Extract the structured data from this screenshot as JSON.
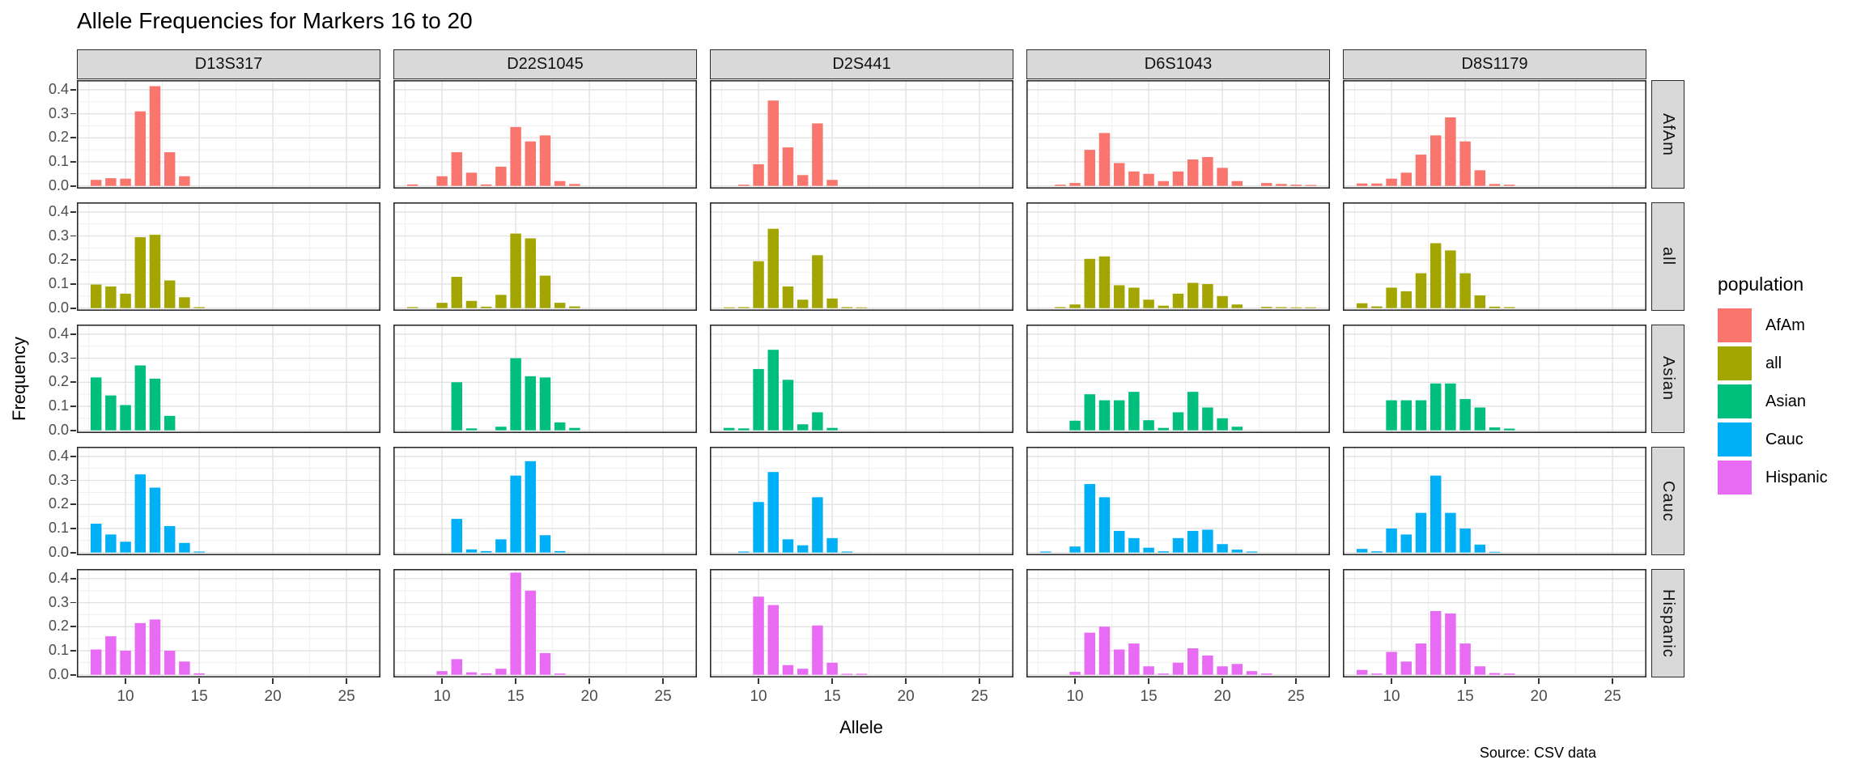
{
  "chart_data": {
    "type": "bar",
    "title": "Allele Frequencies for Markers 16 to 20",
    "xlabel": "Allele",
    "ylabel": "Frequency",
    "caption": "Source: CSV data",
    "x_ticks": [
      10,
      15,
      20,
      25
    ],
    "x_domain": [
      6.7,
      27.3
    ],
    "y_ticks": [
      "0.0",
      "0.1",
      "0.2",
      "0.3",
      "0.4"
    ],
    "y_tick_values": [
      0.0,
      0.1,
      0.2,
      0.3,
      0.4
    ],
    "y_minor_values": [
      0.05,
      0.15,
      0.25,
      0.35
    ],
    "x_minor_values": [
      7.5,
      12.5,
      17.5,
      22.5
    ],
    "ylim": [
      0,
      0.44
    ],
    "grid": "on",
    "legend_position": "right",
    "facets": {
      "columns": [
        "D13S317",
        "D22S1045",
        "D2S441",
        "D6S1043",
        "D8S1179"
      ],
      "rows": [
        "AfAm",
        "all",
        "Asian",
        "Cauc",
        "Hispanic"
      ]
    },
    "legend": {
      "title": "population",
      "entries": [
        {
          "label": "AfAm",
          "color": "#F8766D"
        },
        {
          "label": "all",
          "color": "#A3A500"
        },
        {
          "label": "Asian",
          "color": "#00BF7D"
        },
        {
          "label": "Cauc",
          "color": "#00B0F6"
        },
        {
          "label": "Hispanic",
          "color": "#E76BF3"
        }
      ]
    },
    "panels": [
      {
        "marker": "D13S317",
        "population": "AfAm",
        "alleles": [
          8,
          9,
          10,
          11,
          12,
          13,
          14
        ],
        "freqs": [
          0.025,
          0.032,
          0.03,
          0.31,
          0.415,
          0.14,
          0.04
        ]
      },
      {
        "marker": "D13S317",
        "population": "all",
        "alleles": [
          8,
          9,
          10,
          11,
          12,
          13,
          14,
          15
        ],
        "freqs": [
          0.098,
          0.09,
          0.06,
          0.295,
          0.305,
          0.115,
          0.045,
          0.004
        ]
      },
      {
        "marker": "D13S317",
        "population": "Asian",
        "alleles": [
          8,
          9,
          10,
          11,
          12,
          13
        ],
        "freqs": [
          0.22,
          0.145,
          0.105,
          0.27,
          0.215,
          0.06
        ]
      },
      {
        "marker": "D13S317",
        "population": "Cauc",
        "alleles": [
          8,
          9,
          10,
          11,
          12,
          13,
          14,
          15
        ],
        "freqs": [
          0.12,
          0.075,
          0.045,
          0.325,
          0.27,
          0.11,
          0.04,
          0.004
        ]
      },
      {
        "marker": "D13S317",
        "population": "Hispanic",
        "alleles": [
          8,
          9,
          10,
          11,
          12,
          13,
          14,
          15
        ],
        "freqs": [
          0.105,
          0.16,
          0.1,
          0.215,
          0.23,
          0.1,
          0.055,
          0.006
        ]
      },
      {
        "marker": "D22S1045",
        "population": "AfAm",
        "alleles": [
          8,
          10,
          11,
          12,
          13,
          14,
          15,
          16,
          17,
          18,
          19
        ],
        "freqs": [
          0.006,
          0.04,
          0.14,
          0.055,
          0.006,
          0.08,
          0.245,
          0.185,
          0.21,
          0.02,
          0.008
        ]
      },
      {
        "marker": "D22S1045",
        "population": "all",
        "alleles": [
          8,
          10,
          11,
          12,
          13,
          14,
          15,
          16,
          17,
          18,
          19
        ],
        "freqs": [
          0.004,
          0.022,
          0.13,
          0.03,
          0.006,
          0.055,
          0.31,
          0.29,
          0.135,
          0.022,
          0.007
        ]
      },
      {
        "marker": "D22S1045",
        "population": "Asian",
        "alleles": [
          11,
          12,
          14,
          15,
          16,
          17,
          18,
          19
        ],
        "freqs": [
          0.2,
          0.008,
          0.015,
          0.3,
          0.225,
          0.22,
          0.033,
          0.01
        ]
      },
      {
        "marker": "D22S1045",
        "population": "Cauc",
        "alleles": [
          11,
          12,
          13,
          14,
          15,
          16,
          17,
          18
        ],
        "freqs": [
          0.14,
          0.013,
          0.006,
          0.055,
          0.32,
          0.38,
          0.072,
          0.006
        ]
      },
      {
        "marker": "D22S1045",
        "population": "Hispanic",
        "alleles": [
          10,
          11,
          12,
          13,
          14,
          15,
          16,
          17,
          18
        ],
        "freqs": [
          0.015,
          0.065,
          0.01,
          0.006,
          0.025,
          0.425,
          0.35,
          0.09,
          0.005
        ]
      },
      {
        "marker": "D2S441",
        "population": "AfAm",
        "alleles": [
          9,
          10,
          11,
          12,
          13,
          14,
          15
        ],
        "freqs": [
          0.005,
          0.09,
          0.355,
          0.16,
          0.045,
          0.26,
          0.025
        ]
      },
      {
        "marker": "D2S441",
        "population": "all",
        "alleles": [
          8,
          9,
          10,
          11,
          12,
          13,
          14,
          15,
          16,
          17
        ],
        "freqs": [
          0.003,
          0.004,
          0.195,
          0.33,
          0.09,
          0.035,
          0.22,
          0.04,
          0.004,
          0.003
        ]
      },
      {
        "marker": "D2S441",
        "population": "Asian",
        "alleles": [
          8,
          9,
          10,
          11,
          12,
          13,
          14,
          15
        ],
        "freqs": [
          0.01,
          0.008,
          0.255,
          0.335,
          0.21,
          0.025,
          0.075,
          0.01
        ]
      },
      {
        "marker": "D2S441",
        "population": "Cauc",
        "alleles": [
          9,
          10,
          11,
          12,
          13,
          14,
          15,
          16
        ],
        "freqs": [
          0.004,
          0.21,
          0.335,
          0.055,
          0.03,
          0.23,
          0.06,
          0.004
        ]
      },
      {
        "marker": "D2S441",
        "population": "Hispanic",
        "alleles": [
          10,
          11,
          12,
          13,
          14,
          15,
          16,
          17
        ],
        "freqs": [
          0.325,
          0.29,
          0.04,
          0.025,
          0.205,
          0.05,
          0.004,
          0.004
        ]
      },
      {
        "marker": "D6S1043",
        "population": "AfAm",
        "alleles": [
          9,
          10,
          11,
          12,
          13,
          14,
          15,
          16,
          17,
          18,
          19,
          20,
          21,
          23,
          24,
          25,
          26
        ],
        "freqs": [
          0.005,
          0.012,
          0.15,
          0.22,
          0.095,
          0.06,
          0.05,
          0.02,
          0.06,
          0.11,
          0.12,
          0.075,
          0.02,
          0.012,
          0.008,
          0.005,
          0.004
        ]
      },
      {
        "marker": "D6S1043",
        "population": "all",
        "alleles": [
          9,
          10,
          11,
          12,
          13,
          14,
          15,
          16,
          17,
          18,
          19,
          20,
          21,
          23,
          24,
          25,
          26
        ],
        "freqs": [
          0.004,
          0.015,
          0.205,
          0.215,
          0.095,
          0.085,
          0.035,
          0.01,
          0.06,
          0.105,
          0.1,
          0.05,
          0.015,
          0.005,
          0.004,
          0.003,
          0.003
        ]
      },
      {
        "marker": "D6S1043",
        "population": "Asian",
        "alleles": [
          10,
          11,
          12,
          13,
          14,
          15,
          16,
          17,
          18,
          19,
          20,
          21
        ],
        "freqs": [
          0.04,
          0.15,
          0.125,
          0.125,
          0.16,
          0.042,
          0.01,
          0.075,
          0.16,
          0.095,
          0.05,
          0.015
        ]
      },
      {
        "marker": "D6S1043",
        "population": "Cauc",
        "alleles": [
          8,
          10,
          11,
          12,
          13,
          14,
          15,
          16,
          17,
          18,
          19,
          20,
          21,
          22
        ],
        "freqs": [
          0.004,
          0.025,
          0.285,
          0.23,
          0.09,
          0.06,
          0.02,
          0.005,
          0.06,
          0.09,
          0.095,
          0.035,
          0.012,
          0.004
        ]
      },
      {
        "marker": "D6S1043",
        "population": "Hispanic",
        "alleles": [
          10,
          11,
          12,
          13,
          14,
          15,
          16,
          17,
          18,
          19,
          20,
          21,
          22,
          23
        ],
        "freqs": [
          0.012,
          0.175,
          0.2,
          0.105,
          0.13,
          0.035,
          0.005,
          0.05,
          0.11,
          0.08,
          0.035,
          0.045,
          0.015,
          0.005
        ]
      },
      {
        "marker": "D8S1179",
        "population": "AfAm",
        "alleles": [
          8,
          9,
          10,
          11,
          12,
          13,
          14,
          15,
          16,
          17,
          18
        ],
        "freqs": [
          0.01,
          0.01,
          0.03,
          0.055,
          0.13,
          0.21,
          0.285,
          0.185,
          0.065,
          0.008,
          0.005
        ]
      },
      {
        "marker": "D8S1179",
        "population": "all",
        "alleles": [
          8,
          9,
          10,
          11,
          12,
          13,
          14,
          15,
          16,
          17,
          18
        ],
        "freqs": [
          0.02,
          0.007,
          0.085,
          0.07,
          0.145,
          0.27,
          0.24,
          0.145,
          0.053,
          0.006,
          0.004
        ]
      },
      {
        "marker": "D8S1179",
        "population": "Asian",
        "alleles": [
          10,
          11,
          12,
          13,
          14,
          15,
          16,
          17,
          18
        ],
        "freqs": [
          0.125,
          0.125,
          0.125,
          0.195,
          0.195,
          0.13,
          0.095,
          0.012,
          0.007
        ]
      },
      {
        "marker": "D8S1179",
        "population": "Cauc",
        "alleles": [
          8,
          9,
          10,
          11,
          12,
          13,
          14,
          15,
          16,
          17
        ],
        "freqs": [
          0.015,
          0.005,
          0.1,
          0.075,
          0.165,
          0.32,
          0.165,
          0.1,
          0.033,
          0.003
        ]
      },
      {
        "marker": "D8S1179",
        "population": "Hispanic",
        "alleles": [
          8,
          9,
          10,
          11,
          12,
          13,
          14,
          15,
          16,
          17,
          18
        ],
        "freqs": [
          0.02,
          0.005,
          0.095,
          0.055,
          0.13,
          0.265,
          0.255,
          0.13,
          0.035,
          0.007,
          0.005
        ]
      }
    ]
  }
}
